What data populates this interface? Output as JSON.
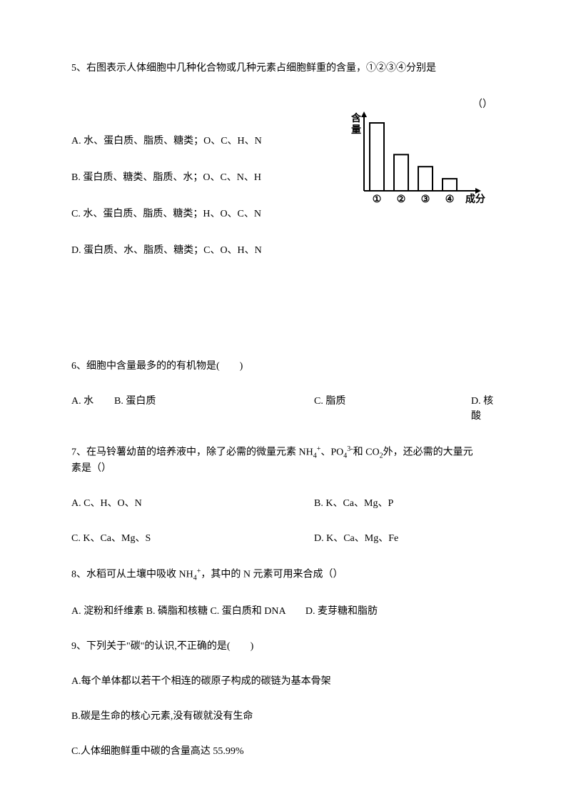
{
  "q5": {
    "text": "5、右图表示人体细胞中几种化合物或几种元素占细胞鲜重的含量，①②③④分别是",
    "paren": "（）",
    "optA": "A. 水、蛋白质、脂质、糖类；O、C、H、N",
    "optB": "B. 蛋白质、糖类、脂质、水；O、C、N、H",
    "optC": "C. 水、蛋白质、脂质、糖类；H、O、C、N",
    "optD": "D. 蛋白质、水、脂质、糖类；C、O、H、N",
    "chart": {
      "ylabel": "含量",
      "xlabel": "成分",
      "categories": [
        "①",
        "②",
        "③",
        "④"
      ],
      "values": [
        90,
        48,
        32,
        16
      ],
      "bar_fill": "#ffffff",
      "bar_stroke": "#000000",
      "stroke_width": 2,
      "axis_color": "#000000",
      "font_size": 14
    }
  },
  "q6": {
    "text": "6、细胞中含量最多的的有机物是(　　)",
    "optA": "A. 水",
    "optB": "B. 蛋白质",
    "optC": "C. 脂质",
    "optD": "D. 核酸"
  },
  "q7": {
    "text_p1": "7、在马铃薯幼苗的培养液中，除了必需的微量元素 NH",
    "text_sub1": "4",
    "text_sup1": "+",
    "text_p2": "、PO",
    "text_sub2": "4",
    "text_sup2": "3-",
    "text_p3": "和 CO",
    "text_sub3": "2",
    "text_p4": "外，还必需的大量元",
    "text_line2": "素是（）",
    "optA": "A. C、H、O、N",
    "optB": "B. K、Ca、Mg、P",
    "optC": "C. K、Ca、Mg、S",
    "optD": "D. K、Ca、Mg、Fe"
  },
  "q8": {
    "text_p1": "8、水稻可从土壤中吸收 NH",
    "text_sub1": "4",
    "text_sup1": "+",
    "text_p2": "，其中的 N 元素可用来合成（）",
    "opts": "A. 淀粉和纤维素 B. 磷脂和核糖 C. 蛋白质和 DNA　　D. 麦芽糖和脂肪"
  },
  "q9": {
    "text": "9、下列关于\"碳\"的认识,不正确的是(　　)",
    "optA": "A.每个单体都以若干个相连的碳原子构成的碳链为基本骨架",
    "optB": "B.碳是生命的核心元素,没有碳就没有生命",
    "optC": "C.人体细胞鲜重中碳的含量高达 55.99%"
  }
}
